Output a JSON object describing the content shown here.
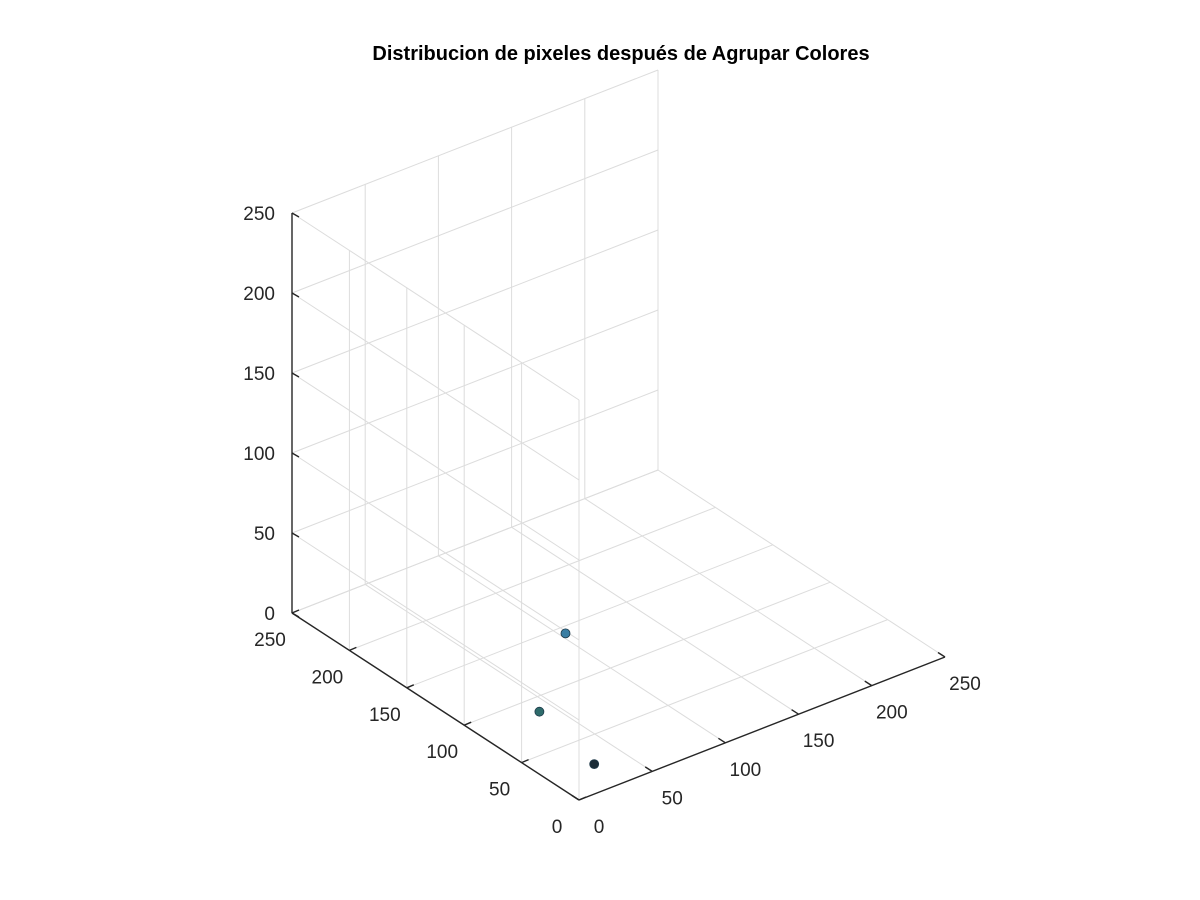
{
  "chart_data": {
    "type": "scatter3d",
    "title": "Distribucion de pixeles después de Agrupar Colores",
    "xlabel": "",
    "ylabel": "",
    "zlabel": "",
    "xlim": [
      0,
      250
    ],
    "ylim": [
      0,
      250
    ],
    "zlim": [
      0,
      250
    ],
    "xticks": [
      0,
      50,
      100,
      150,
      200,
      250
    ],
    "yticks": [
      0,
      50,
      100,
      150,
      200,
      250
    ],
    "zticks": [
      0,
      50,
      100,
      150,
      200,
      250
    ],
    "grid": true,
    "view": "3d-isometric",
    "points": [
      {
        "x": 30,
        "y": 50,
        "z": 70,
        "color": "#3a7ea3"
      },
      {
        "x": 20,
        "y": 60,
        "z": 20,
        "color": "#2e6b6b"
      },
      {
        "x": 30,
        "y": 25,
        "z": 0,
        "color": "#1a2b36"
      }
    ]
  }
}
